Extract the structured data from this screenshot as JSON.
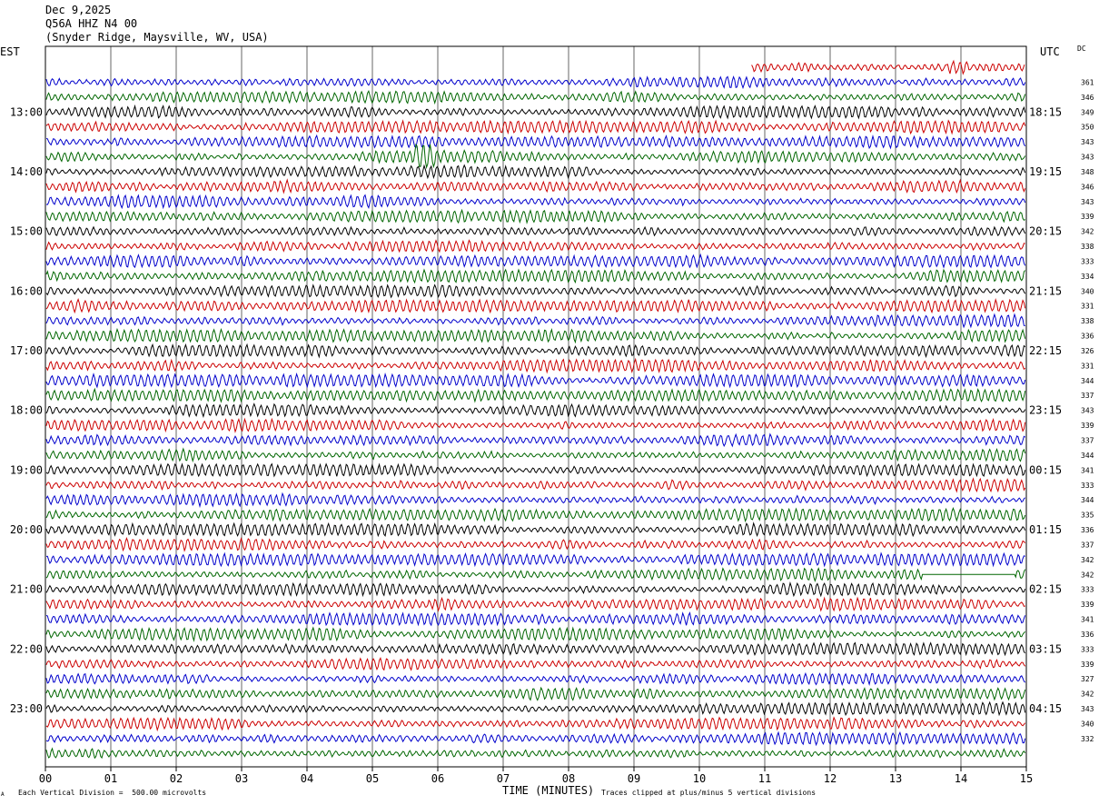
{
  "header": {
    "date": "Dec 9,2025",
    "station": "Q56A HHZ N4 00",
    "location": "(Snyder Ridge, Maysville, WV, USA)"
  },
  "labels": {
    "left_zone": "EST",
    "right_zone": "UTC",
    "dc_header": "DC",
    "xlabel": "TIME (MINUTES)",
    "scale_note": "Each Vertical Division =  500.00 microvolts",
    "clip_note": "Traces clipped at plus/minus 5 vertical divisions",
    "corner_mark": "A"
  },
  "chart_data": {
    "type": "line",
    "title": "Q56A HHZ N4 00",
    "xlabel": "TIME (MINUTES)",
    "xlim": [
      0,
      15
    ],
    "x_ticks": [
      "00",
      "01",
      "02",
      "03",
      "04",
      "05",
      "06",
      "07",
      "08",
      "09",
      "10",
      "11",
      "12",
      "13",
      "14",
      "15"
    ],
    "trace_count": 47,
    "trace_colors": [
      "#000000",
      "#cc0000",
      "#0000cc",
      "#006600"
    ],
    "first_trace_color_index": 1,
    "first_trace_start_minute": 10.8,
    "left_time_labels": [
      "13:00",
      "14:00",
      "15:00",
      "16:00",
      "17:00",
      "18:00",
      "19:00",
      "20:00",
      "21:00",
      "22:00",
      "23:00"
    ],
    "right_time_labels": [
      "18:15",
      "19:15",
      "20:15",
      "21:15",
      "22:15",
      "23:15",
      "00:15",
      "01:15",
      "02:15",
      "03:15",
      "04:15"
    ],
    "hour_label_trace_indices": [
      3,
      7,
      11,
      15,
      19,
      23,
      27,
      31,
      35,
      39,
      43
    ],
    "dc_values": [
      361,
      346,
      349,
      350,
      343,
      343,
      348,
      346,
      343,
      339,
      342,
      338,
      333,
      334,
      340,
      331,
      338,
      336,
      326,
      331,
      344,
      337,
      343,
      339,
      337,
      344,
      341,
      333,
      344,
      335,
      336,
      337,
      342,
      342,
      333,
      339,
      341,
      336,
      333,
      339,
      327,
      342,
      343,
      340,
      332
    ],
    "dc_start_trace": 1,
    "events": [
      {
        "trace": 6,
        "minute": 5.8,
        "note": "burst"
      },
      {
        "trace": 0,
        "minute": 13.95,
        "note": "burst"
      },
      {
        "trace": 34,
        "minute": 13.4,
        "note": "flatline"
      }
    ]
  },
  "colors": {
    "background": "#ffffff",
    "grid": "#000000"
  }
}
